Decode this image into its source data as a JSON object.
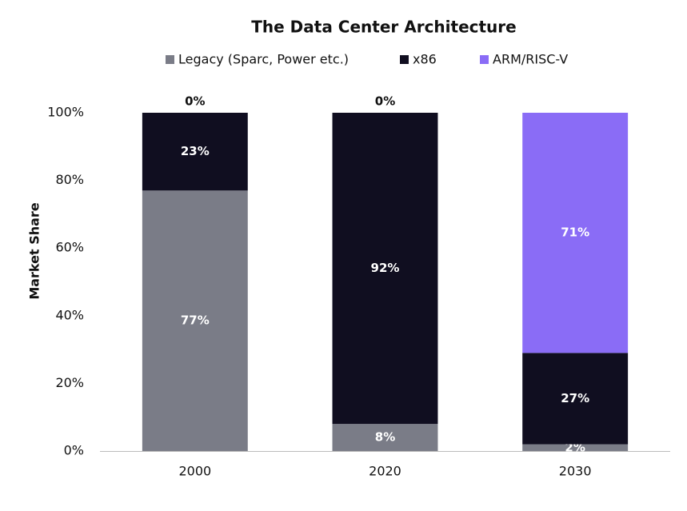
{
  "chart_data": {
    "type": "stacked_bar",
    "title": "The Data Center Architecture",
    "y_label": "Market Share",
    "categories": [
      "2000",
      "2020",
      "2030"
    ],
    "series": [
      {
        "name": "Legacy (Sparc, Power etc.)",
        "color": "#7a7c87",
        "values": [
          77,
          8,
          2
        ],
        "value_labels": [
          "77%",
          "8%",
          "2%"
        ]
      },
      {
        "name": "x86",
        "color": "#100e20",
        "values": [
          23,
          92,
          27
        ],
        "value_labels": [
          "23%",
          "92%",
          "27%"
        ]
      },
      {
        "name": "ARM/RISC-V",
        "color": "#8a6cf6",
        "values": [
          0,
          0,
          71
        ],
        "value_labels": [
          "0%",
          "0%",
          "71%"
        ]
      }
    ],
    "ylim": [
      0,
      100
    ],
    "yticks": [
      {
        "value": 0,
        "label": "0%"
      },
      {
        "value": 20,
        "label": "20%"
      },
      {
        "value": 40,
        "label": "40%"
      },
      {
        "value": 60,
        "label": "60%"
      },
      {
        "value": 80,
        "label": "80%"
      },
      {
        "value": 100,
        "label": "100%"
      }
    ],
    "grid": false,
    "legend": "top"
  }
}
